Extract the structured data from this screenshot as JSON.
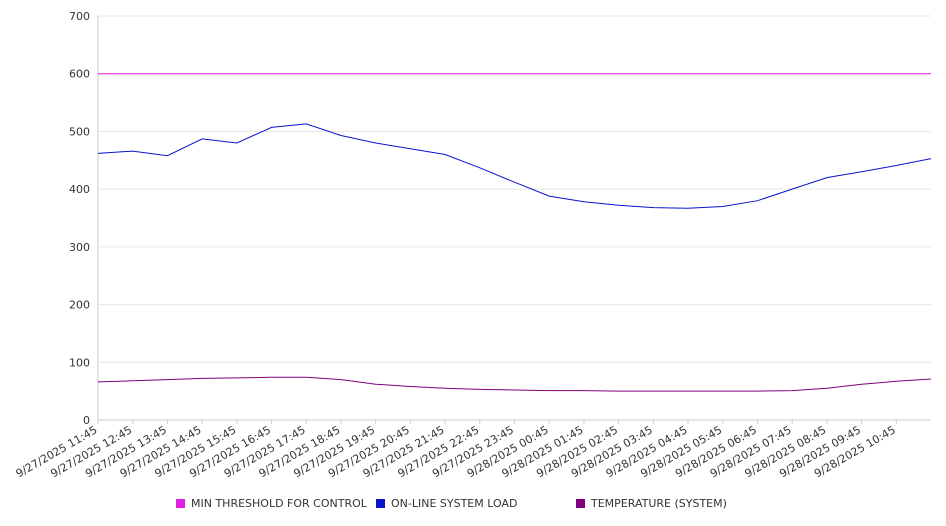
{
  "chart_data": {
    "type": "line",
    "ylim": [
      0,
      700
    ],
    "yticks": [
      "0",
      "100",
      "200",
      "300",
      "400",
      "500",
      "600",
      "700"
    ],
    "grid": true,
    "legend_position": "bottom",
    "x_tick_labels": [
      "9/27/2025 11:45",
      "9/27/2025 12:45",
      "9/27/2025 13:45",
      "9/27/2025 14:45",
      "9/27/2025 15:45",
      "9/27/2025 16:45",
      "9/27/2025 17:45",
      "9/27/2025 18:45",
      "9/27/2025 19:45",
      "9/27/2025 20:45",
      "9/27/2025 21:45",
      "9/27/2025 22:45",
      "9/27/2025 23:45",
      "9/28/2025 00:45",
      "9/28/2025 01:45",
      "9/28/2025 02:45",
      "9/28/2025 03:45",
      "9/28/2025 04:45",
      "9/28/2025 05:45",
      "9/28/2025 06:45",
      "9/28/2025 07:45",
      "9/28/2025 08:45",
      "9/28/2025 09:45",
      "9/28/2025 10:45"
    ],
    "series": [
      {
        "name": "MIN THRESHOLD FOR CONTROL",
        "color": "#e020e0",
        "values": [
          600,
          600,
          600,
          600,
          600,
          600,
          600,
          600,
          600,
          600,
          600,
          600,
          600,
          600,
          600,
          600,
          600,
          600,
          600,
          600,
          600,
          600,
          600,
          600,
          600
        ]
      },
      {
        "name": "ON-LINE SYSTEM LOAD",
        "color": "#0a14c8",
        "values": [
          462,
          466,
          458,
          487,
          480,
          507,
          513,
          493,
          480,
          470,
          460,
          437,
          412,
          388,
          378,
          372,
          368,
          367,
          370,
          380,
          400,
          420,
          430,
          441,
          453
        ]
      },
      {
        "name": "TEMPERATURE (SYSTEM)",
        "color": "#800080",
        "values": [
          66,
          68,
          70,
          72,
          73,
          74,
          74,
          70,
          62,
          58,
          55,
          53,
          52,
          51,
          51,
          50,
          50,
          50,
          50,
          50,
          51,
          55,
          62,
          67,
          71
        ]
      }
    ]
  }
}
